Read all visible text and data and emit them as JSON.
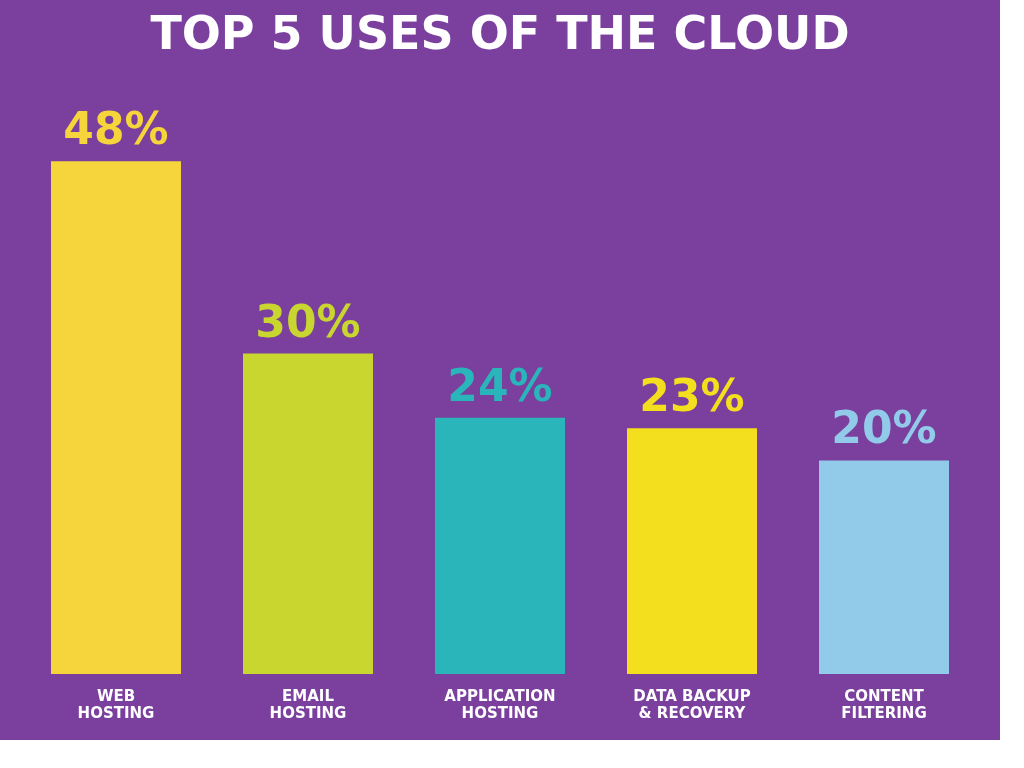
{
  "chart_data": {
    "type": "bar",
    "title": "TOP 5 USES OF THE CLOUD",
    "categories": [
      "WEB\nHOSTING",
      "EMAIL\nHOSTING",
      "APPLICATION\nHOSTING",
      "DATA BACKUP\n& RECOVERY",
      "CONTENT\nFILTERING"
    ],
    "values": [
      48,
      30,
      24,
      23,
      20
    ],
    "value_labels": [
      "48%",
      "30%",
      "24%",
      "23%",
      "20%"
    ],
    "colors": [
      "#f5d43c",
      "#c9d630",
      "#2ab5bb",
      "#f3df1e",
      "#92cbe9"
    ],
    "grid": false
  }
}
